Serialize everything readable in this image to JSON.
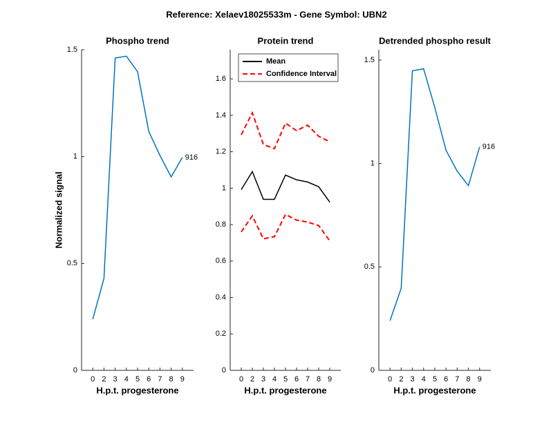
{
  "title": "Reference:  Xelaev18025533m - Gene Symbol:  UBN2",
  "chart_data": [
    {
      "type": "line",
      "title": "Phospho trend",
      "xlabel": "H.p.t. progesterone",
      "ylabel": "Normalized signal",
      "categories": [
        "0",
        "2",
        "3",
        "4",
        "5",
        "6",
        "7",
        "8",
        "9"
      ],
      "values": [
        0.239,
        0.43,
        1.461,
        1.47,
        1.397,
        1.118,
        1.005,
        0.905,
        0.996
      ],
      "color": "#0072bd",
      "ylim": [
        0,
        1.5
      ],
      "yticks": [
        0,
        0.5,
        1,
        1.5
      ],
      "annotation": "916"
    },
    {
      "type": "line",
      "title": "Protein trend",
      "xlabel": "H.p.t. progesterone",
      "categories": [
        "0",
        "2",
        "3",
        "4",
        "5",
        "6",
        "7",
        "8",
        "9"
      ],
      "series": [
        {
          "name": "Mean",
          "color": "#000000",
          "values": [
            0.992,
            1.091,
            0.939,
            0.939,
            1.072,
            1.046,
            1.034,
            1.008,
            0.924
          ]
        },
        {
          "name": "Confidence Interval",
          "color": "#ff0000",
          "dashed": true,
          "values": [
            1.293,
            1.414,
            1.24,
            1.217,
            1.357,
            1.316,
            1.346,
            1.285,
            1.255
          ]
        },
        {
          "color": "#ff0000",
          "dashed": true,
          "values": [
            0.76,
            0.848,
            0.722,
            0.734,
            0.856,
            0.825,
            0.814,
            0.795,
            0.711
          ]
        }
      ],
      "ylim": [
        0,
        1.76
      ],
      "yticks": [
        0,
        0.2,
        0.4,
        0.6,
        0.8,
        1,
        1.2,
        1.4,
        1.6
      ],
      "legend": "upper left"
    },
    {
      "type": "line",
      "title": "Detrended phospho result",
      "xlabel": "H.p.t. progesterone",
      "categories": [
        "0",
        "2",
        "3",
        "4",
        "5",
        "6",
        "7",
        "8",
        "9"
      ],
      "values": [
        0.24,
        0.397,
        1.448,
        1.458,
        1.271,
        1.064,
        0.963,
        0.893,
        1.08
      ],
      "color": "#0072bd",
      "ylim": [
        0,
        1.55
      ],
      "yticks": [
        0,
        0.5,
        1,
        1.5
      ],
      "annotation": "916"
    }
  ]
}
